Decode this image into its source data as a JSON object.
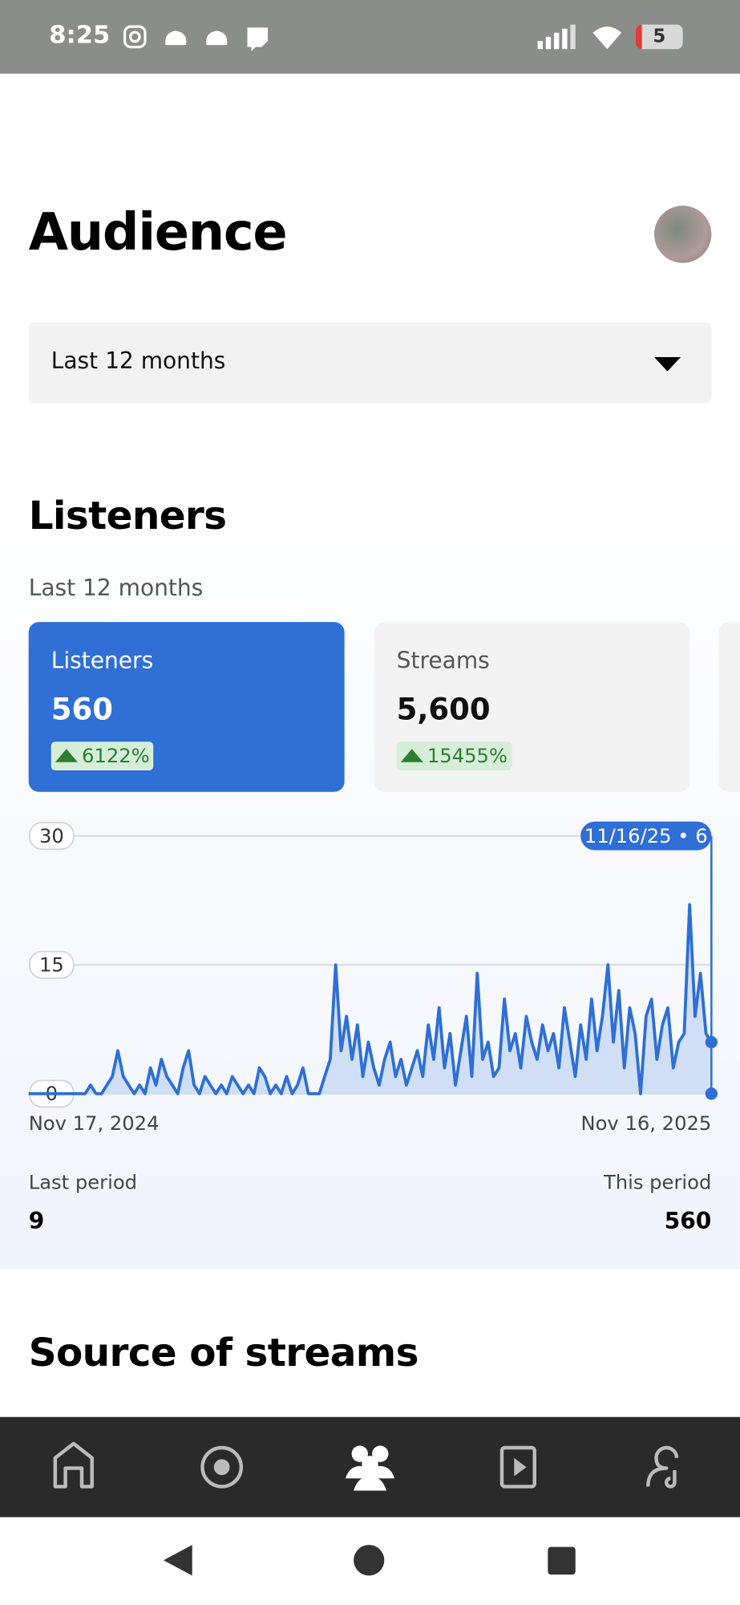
{
  "status_bar": {
    "time": "8:25",
    "battery": "5"
  },
  "header": {
    "title": "Audience"
  },
  "filter": {
    "selected": "Last 12 months"
  },
  "listeners_section": {
    "title": "Listeners",
    "subtitle": "Last 12 months",
    "cards": [
      {
        "label": "Listeners",
        "value": "560",
        "change": "6122%"
      },
      {
        "label": "Streams",
        "value": "5,600",
        "change": "15455%"
      }
    ],
    "last_period": {
      "label": "Last period",
      "value": "9"
    },
    "this_period": {
      "label": "This period",
      "value": "560"
    }
  },
  "chart_data": {
    "type": "area",
    "color": "#2f6fd6",
    "grid": true,
    "ylim": [
      0,
      30
    ],
    "yticks": [
      0,
      15,
      30
    ],
    "x_start_label": "Nov 17, 2024",
    "x_end_label": "Nov 16, 2025",
    "tooltip": "11/16/25 • 6",
    "values": [
      0,
      0,
      0,
      0,
      0,
      1,
      0,
      0,
      1,
      2,
      5,
      2,
      1,
      0,
      1,
      0,
      3,
      1,
      4,
      2,
      1,
      0,
      3,
      5,
      1,
      0,
      2,
      1,
      0,
      1,
      0,
      2,
      1,
      0,
      1,
      0,
      3,
      2,
      0,
      1,
      0,
      2,
      0,
      1,
      3,
      0,
      0,
      0,
      2,
      4,
      15,
      5,
      9,
      4,
      8,
      2,
      6,
      3,
      1,
      4,
      6,
      2,
      4,
      1,
      3,
      5,
      2,
      8,
      4,
      10,
      3,
      7,
      1,
      5,
      9,
      2,
      14,
      4,
      6,
      2,
      3,
      11,
      5,
      7,
      3,
      9,
      6,
      4,
      8,
      5,
      7,
      3,
      10,
      6,
      2,
      8,
      4,
      11,
      5,
      9,
      15,
      6,
      12,
      3,
      10,
      7,
      0,
      9,
      11,
      4,
      8,
      10,
      3,
      6,
      7,
      22,
      9,
      14,
      7,
      6
    ]
  },
  "next_section": {
    "title": "Source of streams"
  }
}
